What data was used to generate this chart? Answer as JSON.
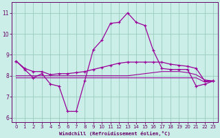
{
  "x": [
    0,
    1,
    2,
    3,
    4,
    5,
    6,
    7,
    8,
    9,
    10,
    11,
    12,
    13,
    14,
    15,
    16,
    17,
    18,
    19,
    20,
    21,
    22,
    23
  ],
  "line_zigzag": [
    8.7,
    8.3,
    7.9,
    8.1,
    7.6,
    7.5,
    6.3,
    6.3,
    7.75,
    9.25,
    9.7,
    10.5,
    10.55,
    11.0,
    10.55,
    10.4,
    9.2,
    8.35,
    8.3,
    8.3,
    8.3,
    7.5,
    7.6,
    7.75
  ],
  "line_diagonal": [
    8.7,
    8.35,
    8.2,
    8.2,
    8.05,
    8.1,
    8.1,
    8.15,
    8.2,
    8.3,
    8.4,
    8.5,
    8.6,
    8.65,
    8.65,
    8.65,
    8.65,
    8.65,
    8.55,
    8.5,
    8.45,
    8.35,
    7.75,
    7.75
  ],
  "line_flat_low": [
    7.9,
    7.9,
    7.9,
    7.9,
    7.9,
    7.9,
    7.9,
    7.9,
    7.9,
    7.9,
    7.9,
    7.9,
    7.9,
    7.9,
    7.9,
    7.9,
    7.9,
    7.9,
    7.9,
    7.9,
    7.9,
    7.9,
    7.7,
    7.75
  ],
  "line_flat_high": [
    8.0,
    8.0,
    8.0,
    8.0,
    8.0,
    8.0,
    8.0,
    8.0,
    8.0,
    8.0,
    8.0,
    8.0,
    8.0,
    8.0,
    8.05,
    8.1,
    8.15,
    8.2,
    8.2,
    8.2,
    8.15,
    8.05,
    7.8,
    7.75
  ],
  "color": "#990099",
  "bg_color": "#cceee8",
  "grid_color": "#99ccbb",
  "axis_color": "#660066",
  "title": "Windchill (Refroidissement éolien,°C)",
  "xlim": [
    -0.5,
    23.5
  ],
  "ylim": [
    5.8,
    11.5
  ],
  "yticks": [
    6,
    7,
    8,
    9,
    10,
    11
  ],
  "xticks": [
    0,
    1,
    2,
    3,
    4,
    5,
    6,
    7,
    8,
    9,
    10,
    11,
    12,
    13,
    14,
    15,
    16,
    17,
    18,
    19,
    20,
    21,
    22,
    23
  ]
}
